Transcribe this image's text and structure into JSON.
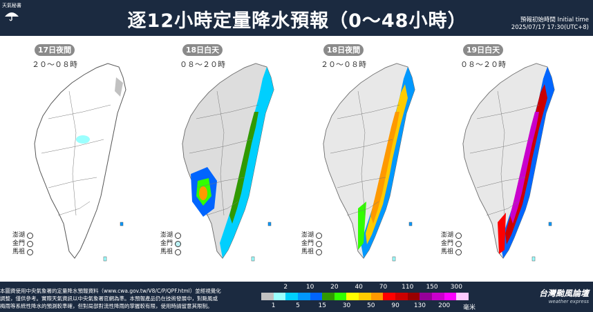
{
  "header": {
    "logo_text": "天氣秘書",
    "title": "逐12小時定量降水預報（0～48小時）",
    "init_label": "預報初始時間 Initial time",
    "init_time": "2025/07/17  17:30(UTC+8)"
  },
  "panels": [
    {
      "period": "17日夜間",
      "hours": "２０～０８時",
      "intensity": 0
    },
    {
      "period": "18日白天",
      "hours": "０８～２０時",
      "intensity": 1
    },
    {
      "period": "18日夜間",
      "hours": "２０～０８時",
      "intensity": 2
    },
    {
      "period": "19日白天",
      "hours": "０８～２０時",
      "intensity": 3
    }
  ],
  "islands": [
    {
      "name": "澎湖"
    },
    {
      "name": "金門"
    },
    {
      "name": "馬祖"
    }
  ],
  "legend": {
    "top_ticks": [
      "2",
      "10",
      "20",
      "40",
      "70",
      "110",
      "150",
      "300"
    ],
    "bottom_ticks": [
      "1",
      "5",
      "15",
      "30",
      "50",
      "90",
      "130",
      "200"
    ],
    "unit": "毫米",
    "colors": [
      "#c1c1c1",
      "#9bfffe",
      "#00cffe",
      "#0198fe",
      "#0165fe",
      "#309901",
      "#32fe00",
      "#fefe00",
      "#fecb00",
      "#fe9900",
      "#fe0000",
      "#cc0000",
      "#990000",
      "#960099",
      "#c900cc",
      "#fb00ff",
      "#fdc9fe"
    ]
  },
  "note": {
    "line1": "本圖資使用中央氣象署的定量降水預報資料（www.cwa.gov.tw/V8/C/P/QPF.html）並經視覺化",
    "line2": "調整，僅供參考。實際天氣資訊以中央氣象署官網為準。本預報產品仍在技術發展中，對颱風或",
    "line3": "梅雨等系統性降水的預測較準確，但對局部對流性降雨的掌握較有限，使用時請留意其限制。"
  },
  "brand": {
    "name": "台灣颱風論壇",
    "sub": "weather express"
  }
}
